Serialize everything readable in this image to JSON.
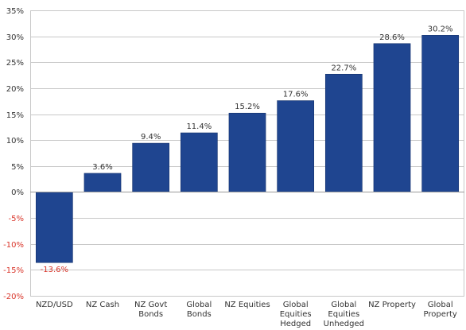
{
  "chart_data": {
    "type": "bar",
    "categories": [
      [
        "NZD/USD"
      ],
      [
        "NZ Cash"
      ],
      [
        "NZ Govt",
        "Bonds"
      ],
      [
        "Global",
        "Bonds"
      ],
      [
        "NZ Equities"
      ],
      [
        "Global",
        "Equities",
        "Hedged"
      ],
      [
        "Global",
        "Equities",
        "Unhedged"
      ],
      [
        "NZ Property"
      ],
      [
        "Global",
        "Property"
      ]
    ],
    "values": [
      -13.6,
      3.6,
      9.4,
      11.4,
      15.2,
      17.6,
      22.7,
      28.6,
      30.2
    ],
    "data_labels": [
      "-13.6%",
      "3.6%",
      "9.4%",
      "11.4%",
      "15.2%",
      "17.6%",
      "22.7%",
      "28.6%",
      "30.2%"
    ],
    "ylim": [
      -20,
      35
    ],
    "yticks": [
      35,
      30,
      25,
      20,
      15,
      10,
      5,
      0,
      -5,
      -10,
      -15,
      -20
    ],
    "ytick_labels": [
      "35%",
      "30%",
      "25%",
      "20%",
      "15%",
      "10%",
      "5%",
      "0%",
      "-5%",
      "-10%",
      "-15%",
      "-20%"
    ],
    "grid": true,
    "bar_color": "#1f4590",
    "negative_label_color": "#d9362b",
    "grid_color": "#c8c8c8"
  }
}
